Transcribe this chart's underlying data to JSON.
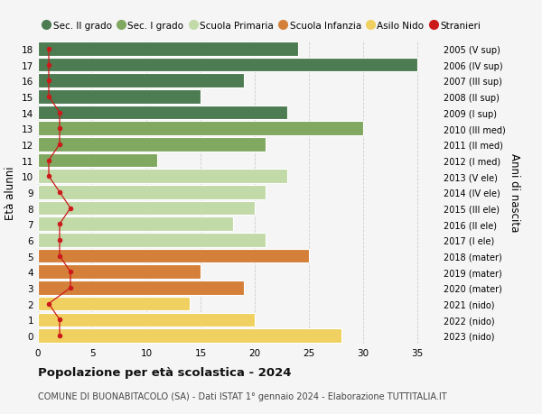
{
  "ages": [
    18,
    17,
    16,
    15,
    14,
    13,
    12,
    11,
    10,
    9,
    8,
    7,
    6,
    5,
    4,
    3,
    2,
    1,
    0
  ],
  "bar_values": [
    24,
    35,
    19,
    15,
    23,
    30,
    21,
    11,
    23,
    21,
    20,
    18,
    21,
    25,
    15,
    19,
    14,
    20,
    28
  ],
  "stranieri_values": [
    1,
    1,
    1,
    1,
    2,
    2,
    2,
    1,
    1,
    2,
    3,
    2,
    2,
    2,
    3,
    3,
    1,
    2,
    2
  ],
  "right_labels": [
    "2005 (V sup)",
    "2006 (IV sup)",
    "2007 (III sup)",
    "2008 (II sup)",
    "2009 (I sup)",
    "2010 (III med)",
    "2011 (II med)",
    "2012 (I med)",
    "2013 (V ele)",
    "2014 (IV ele)",
    "2015 (III ele)",
    "2016 (II ele)",
    "2017 (I ele)",
    "2018 (mater)",
    "2019 (mater)",
    "2020 (mater)",
    "2021 (nido)",
    "2022 (nido)",
    "2023 (nido)"
  ],
  "bar_colors": [
    "#4d7c52",
    "#4d7c52",
    "#4d7c52",
    "#4d7c52",
    "#4d7c52",
    "#80a860",
    "#80a860",
    "#80a860",
    "#c2d9a8",
    "#c2d9a8",
    "#c2d9a8",
    "#c2d9a8",
    "#c2d9a8",
    "#d4803a",
    "#d4803a",
    "#d4803a",
    "#f0d060",
    "#f0d060",
    "#f0d060"
  ],
  "legend_labels": [
    "Sec. II grado",
    "Sec. I grado",
    "Scuola Primaria",
    "Scuola Infanzia",
    "Asilo Nido",
    "Stranieri"
  ],
  "legend_colors": [
    "#4d7c52",
    "#80a860",
    "#c2d9a8",
    "#d4803a",
    "#f0d060",
    "#cc1a1a"
  ],
  "title": "Popolazione per età scolastica - 2024",
  "subtitle": "COMUNE DI BUONABITACOLO (SA) - Dati ISTAT 1° gennaio 2024 - Elaborazione TUTTITALIA.IT",
  "ylabel_left": "Età alunni",
  "ylabel_right": "Anni di nascita",
  "xlim": [
    0,
    37
  ],
  "bg_color": "#f5f5f5",
  "stranieri_color": "#cc1a1a"
}
